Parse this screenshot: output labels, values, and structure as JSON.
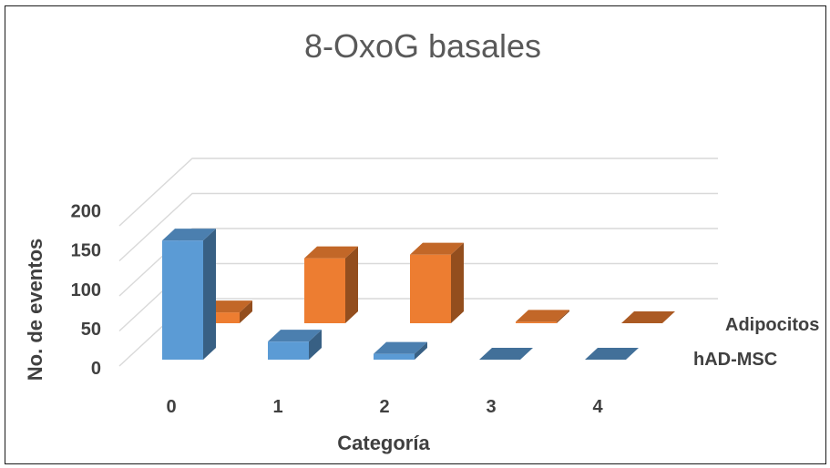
{
  "chart_data": {
    "type": "bar",
    "title": "8-OxoG basales",
    "xlabel": "Categoría",
    "ylabel": "No. de eventos",
    "categories": [
      "0",
      "1",
      "2",
      "3",
      "4"
    ],
    "series": [
      {
        "name": "hAD-MSC",
        "values": [
          165,
          25,
          8,
          0,
          0
        ]
      },
      {
        "name": "Adipocitos",
        "values": [
          15,
          90,
          95,
          2,
          0
        ]
      }
    ],
    "ylim": [
      0,
      200
    ],
    "yticks": [
      "0",
      "50",
      "100",
      "150",
      "200"
    ],
    "grid": true,
    "colors": {
      "hAD-MSC": "#5b9bd5",
      "Adipocitos": "#ed7d31"
    }
  }
}
